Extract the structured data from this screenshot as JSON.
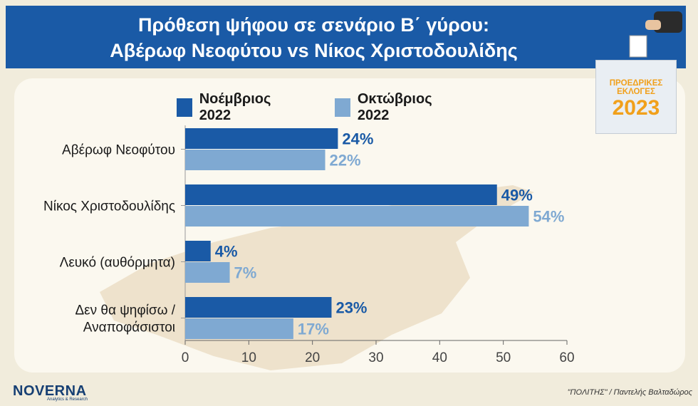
{
  "header": {
    "line1": "Πρόθεση ψήφου σε σενάριο Β΄ γύρου:",
    "line2": "Αβέρωφ Νεοφύτου vs Νίκος Χριστοδουλίδης"
  },
  "badge": {
    "line1": "ΠΡΟΕΔΡΙΚΕΣ",
    "line2": "ΕΚΛΟΓΕΣ",
    "year": "2023"
  },
  "logo": {
    "name": "NOVERNA",
    "tagline": "Analytics & Research"
  },
  "credit": "\"ΠΟΛΙΤΗΣ\" / Παντελής Βαλταδώρος",
  "chart_data": {
    "type": "bar",
    "orientation": "horizontal",
    "categories": [
      [
        "Αβέρωφ Νεοφύτου"
      ],
      [
        "Νίκος Χριστοδουλίδης"
      ],
      [
        "Λευκό (αυθόρμητα)"
      ],
      [
        "Δεν θα ψηφίσω /",
        "Αναποφάσιστοι"
      ]
    ],
    "series": [
      {
        "name": "Νοέμβριος 2022",
        "color": "#1a5aa6",
        "label_color": "#1a5aa6",
        "values": [
          24,
          49,
          4,
          23
        ]
      },
      {
        "name": "Οκτώβριος 2022",
        "color": "#7fa9d2",
        "label_color": "#7fa9d2",
        "values": [
          22,
          54,
          7,
          17
        ]
      }
    ],
    "value_suffix": "%",
    "xlim": [
      0,
      60
    ],
    "xticks": [
      0,
      10,
      20,
      30,
      40,
      50,
      60
    ],
    "grid": false,
    "legend_position": "top"
  }
}
